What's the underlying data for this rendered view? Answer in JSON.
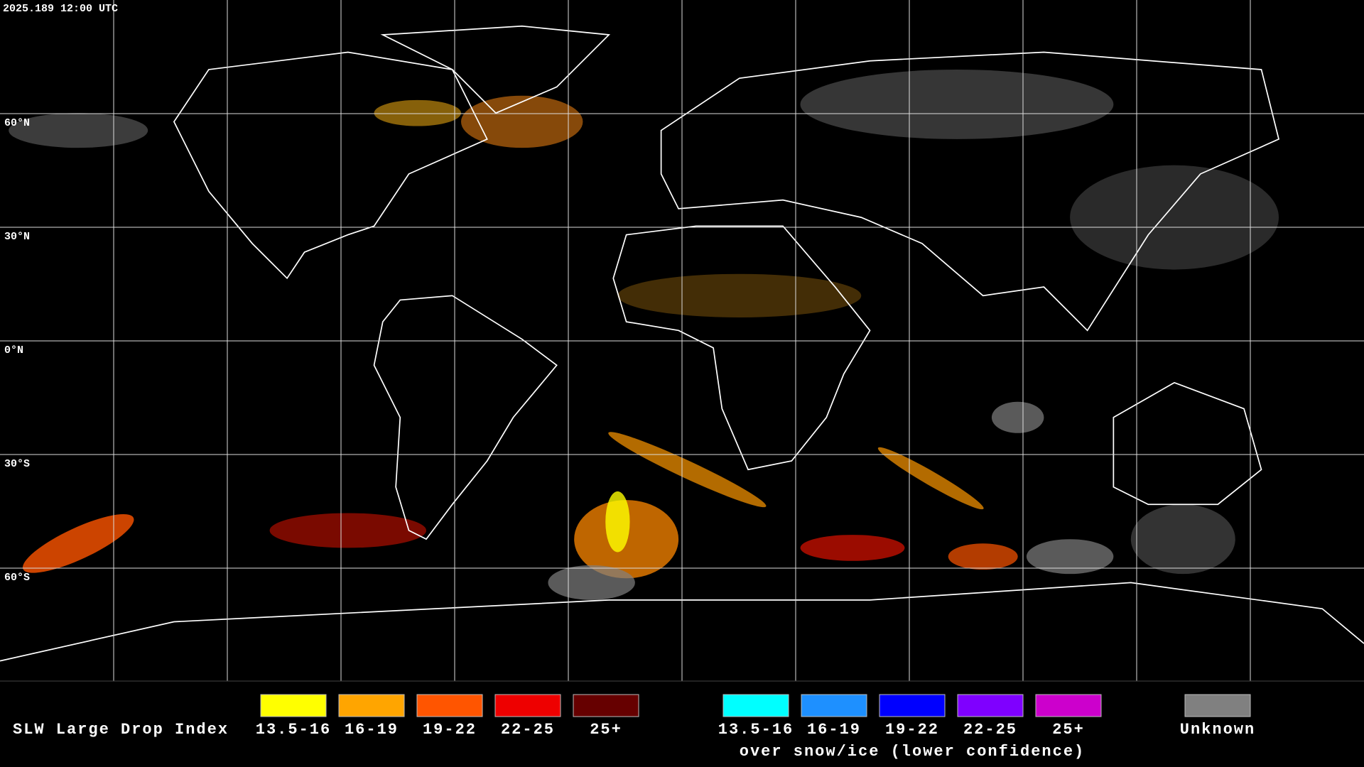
{
  "header": {
    "timestamp": "2025.189 12:00 UTC"
  },
  "map": {
    "lat_labels": [
      "60°N",
      "30°N",
      "0°N",
      "30°S",
      "60°S"
    ]
  },
  "legend": {
    "title": "SLW Large Drop Index",
    "items": [
      {
        "label": "13.5-16",
        "color": "#ffff00"
      },
      {
        "label": "16-19",
        "color": "#ffa500"
      },
      {
        "label": "19-22",
        "color": "#ff5500"
      },
      {
        "label": "22-25",
        "color": "#ee0000"
      },
      {
        "label": "25+",
        "color": "#660000"
      }
    ],
    "snow_items": [
      {
        "label": "13.5-16",
        "color": "#00ffff"
      },
      {
        "label": "16-19",
        "color": "#1e90ff"
      },
      {
        "label": "19-22",
        "color": "#0000ff"
      },
      {
        "label": "22-25",
        "color": "#7f00ff"
      },
      {
        "label": "25+",
        "color": "#cc00cc"
      }
    ],
    "snow_note": "over snow/ice (lower confidence)",
    "unknown": {
      "label": "Unknown",
      "color": "#808080"
    }
  }
}
